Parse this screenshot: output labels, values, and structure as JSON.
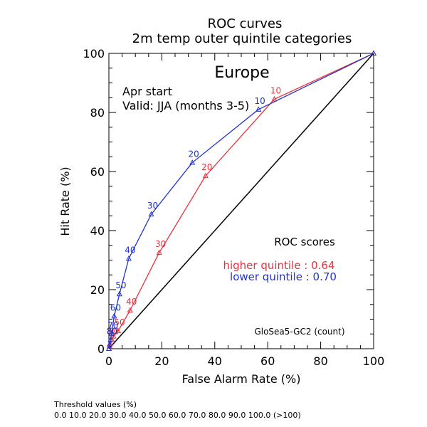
{
  "chart_data": {
    "type": "line",
    "title": "ROC curves",
    "subtitle": "2m temp outer quintile categories",
    "region": "Europe",
    "start_text": "Apr start",
    "valid_text": "Valid: JJA (months 3-5)",
    "xlabel": "False Alarm Rate (%)",
    "ylabel": "Hit Rate (%)",
    "xlim": [
      0,
      100
    ],
    "ylim": [
      0,
      100
    ],
    "x_ticks": [
      "0",
      "20",
      "40",
      "60",
      "80",
      "100"
    ],
    "y_ticks": [
      "0",
      "20",
      "40",
      "60",
      "80",
      "100"
    ],
    "diagonal_reference": true,
    "scores_title": "ROC scores",
    "model_label": "GloSea5-GC2 (count)",
    "series": [
      {
        "name": "higher quintile",
        "score_text": "higher quintile : 0.64",
        "color": "#e8323c",
        "marker": "triangle",
        "points": [
          {
            "x": 0.0,
            "y": 0.0,
            "label": ""
          },
          {
            "x": 0.3,
            "y": 0.9,
            "label": ""
          },
          {
            "x": 0.6,
            "y": 1.8,
            "label": ""
          },
          {
            "x": 1.2,
            "y": 3.0,
            "label": "80"
          },
          {
            "x": 1.8,
            "y": 4.2,
            "label": ""
          },
          {
            "x": 3.5,
            "y": 6.0,
            "label": "50"
          },
          {
            "x": 8.0,
            "y": 13.0,
            "label": "40"
          },
          {
            "x": 19.0,
            "y": 32.5,
            "label": "30"
          },
          {
            "x": 36.5,
            "y": 58.5,
            "label": "20"
          },
          {
            "x": 62.5,
            "y": 84.5,
            "label": "10"
          },
          {
            "x": 100.0,
            "y": 100.0,
            "label": ""
          }
        ]
      },
      {
        "name": "lower quintile",
        "score_text": "lower quintile : 0.70",
        "color": "#2233cc",
        "marker": "triangle",
        "points": [
          {
            "x": 0.0,
            "y": 0.0,
            "label": ""
          },
          {
            "x": 0.3,
            "y": 1.5,
            "label": ""
          },
          {
            "x": 0.6,
            "y": 3.0,
            "label": "80"
          },
          {
            "x": 1.0,
            "y": 5.0,
            "label": "70"
          },
          {
            "x": 2.0,
            "y": 11.0,
            "label": "60"
          },
          {
            "x": 4.0,
            "y": 18.5,
            "label": "50"
          },
          {
            "x": 7.5,
            "y": 30.5,
            "label": "40"
          },
          {
            "x": 16.0,
            "y": 45.5,
            "label": "30"
          },
          {
            "x": 31.5,
            "y": 63.0,
            "label": "20"
          },
          {
            "x": 56.5,
            "y": 81.0,
            "label": "10"
          },
          {
            "x": 100.0,
            "y": 100.0,
            "label": ""
          }
        ]
      }
    ]
  },
  "footer": {
    "threshold_title": "Threshold values (%)",
    "threshold_values": "0.0 10.0 20.0 30.0 40.0 50.0 60.0 70.0 80.0 90.0 100.0 (>100)"
  }
}
